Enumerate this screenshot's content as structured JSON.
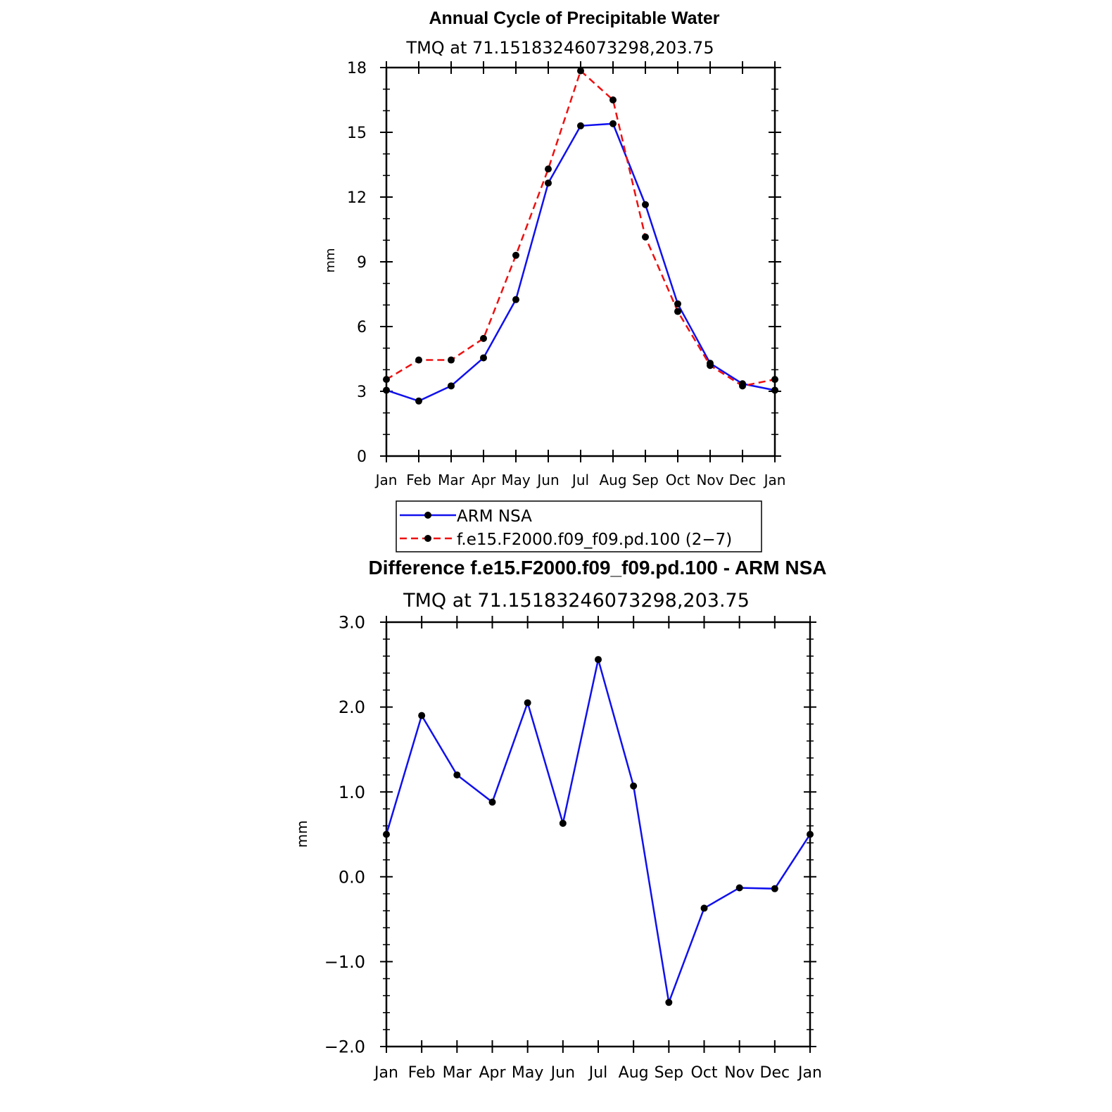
{
  "chart_data": [
    {
      "type": "line",
      "title": "Annual Cycle of Precipitable Water",
      "subtitle": "TMQ at 71.15183246073298,203.75",
      "xlabel": "",
      "ylabel": "mm",
      "categories": [
        "Jan",
        "Feb",
        "Mar",
        "Apr",
        "May",
        "Jun",
        "Jul",
        "Aug",
        "Sep",
        "Oct",
        "Nov",
        "Dec",
        "Jan"
      ],
      "ylim": [
        0,
        18
      ],
      "yticks": [
        0,
        3,
        6,
        9,
        12,
        15,
        18
      ],
      "ytick_labels": [
        "0",
        "3",
        "6",
        "9",
        "12",
        "15",
        "18"
      ],
      "grid": false,
      "series": [
        {
          "name": "ARM NSA",
          "color": "#1010ee",
          "dash": "solid",
          "values": [
            3.05,
            2.55,
            3.25,
            4.55,
            7.25,
            12.65,
            15.3,
            15.4,
            11.65,
            7.05,
            4.3,
            3.35,
            3.05
          ]
        },
        {
          "name": "f.e15.F2000.f09_f09.pd.100 (2−7)",
          "color": "#ee1010",
          "dash": "dashed",
          "values": [
            3.55,
            4.45,
            4.45,
            5.45,
            9.3,
            13.3,
            17.85,
            16.5,
            10.15,
            6.7,
            4.2,
            3.25,
            3.55
          ]
        }
      ],
      "legend": {
        "position": "bottom",
        "entries": [
          "ARM NSA",
          "f.e15.F2000.f09_f09.pd.100 (2−7)"
        ]
      }
    },
    {
      "type": "line",
      "title": "Difference f.e15.F2000.f09_f09.pd.100 - ARM NSA",
      "subtitle": "TMQ at 71.15183246073298,203.75",
      "xlabel": "",
      "ylabel": "mm",
      "categories": [
        "Jan",
        "Feb",
        "Mar",
        "Apr",
        "May",
        "Jun",
        "Jul",
        "Aug",
        "Sep",
        "Oct",
        "Nov",
        "Dec",
        "Jan"
      ],
      "ylim": [
        -2.0,
        3.0
      ],
      "yticks": [
        -2.0,
        -1.0,
        0.0,
        1.0,
        2.0,
        3.0
      ],
      "ytick_labels": [
        "−2.0",
        "−1.0",
        "0.0",
        "1.0",
        "2.0",
        "3.0"
      ],
      "grid": false,
      "series": [
        {
          "name": "Difference",
          "color": "#1010ee",
          "dash": "solid",
          "values": [
            0.5,
            1.9,
            1.2,
            0.88,
            2.05,
            0.63,
            2.56,
            1.07,
            -1.48,
            -0.37,
            -0.13,
            -0.14,
            0.5
          ]
        }
      ]
    }
  ]
}
